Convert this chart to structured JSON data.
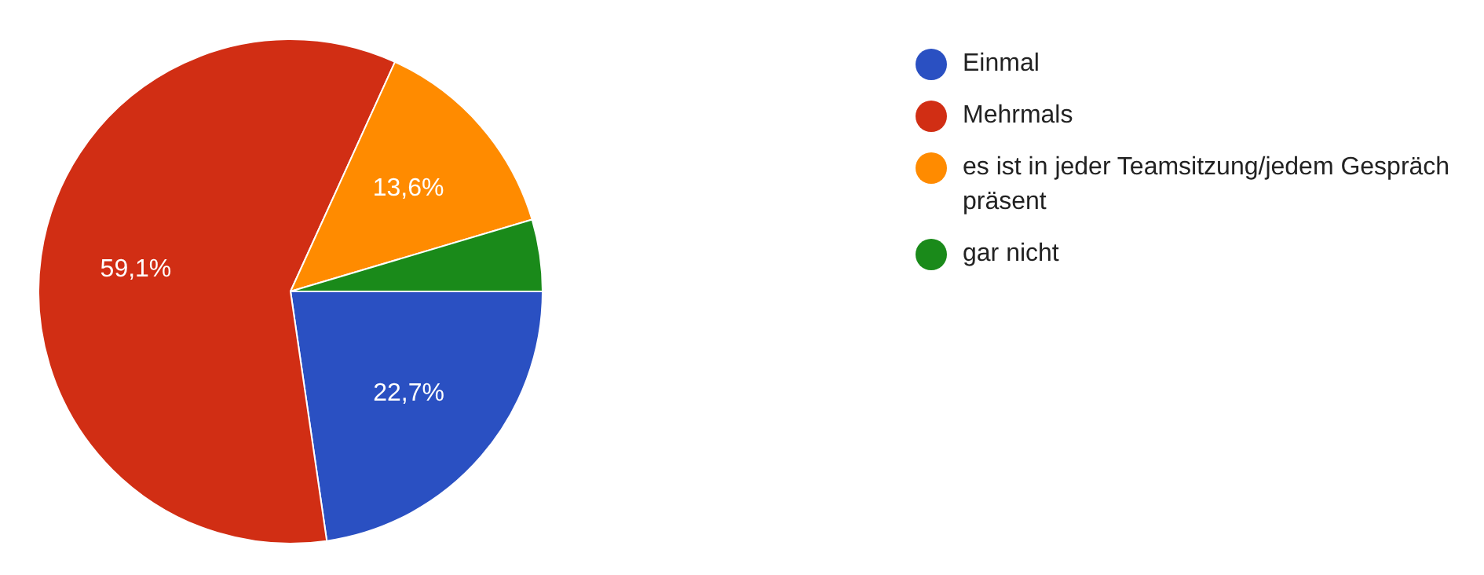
{
  "chart_data": {
    "type": "pie",
    "categories": [
      "Einmal",
      "Mehrmals",
      "es ist in jeder Teamsitzung/jedem Gespräch präsent",
      "gar nicht"
    ],
    "values": [
      22.7,
      59.1,
      13.6,
      4.6
    ],
    "colors": [
      "#2a50c2",
      "#d12e14",
      "#ff8b00",
      "#1a8a1a"
    ],
    "value_labels": [
      "22,7%",
      "59,1%",
      "13,6%",
      null
    ],
    "legend": "right"
  }
}
